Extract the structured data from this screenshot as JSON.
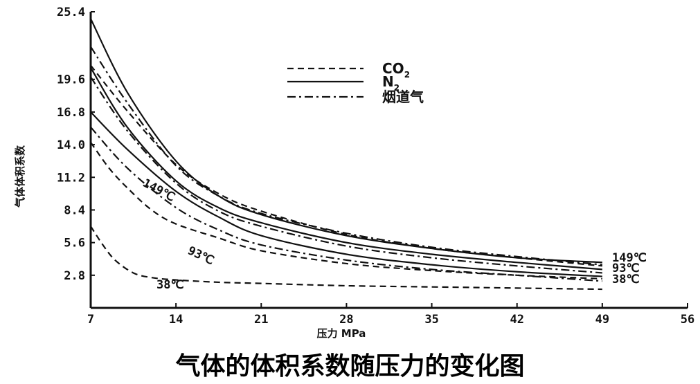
{
  "caption": "气体的体积系数随压力的变化图",
  "chart_data": {
    "type": "line",
    "xlabel": "压力 MPa",
    "ylabel": "气体体积系数",
    "xlim": [
      7,
      56
    ],
    "ylim": [
      0,
      25.4
    ],
    "xticks": [
      "7",
      "14",
      "21",
      "28",
      "35",
      "42",
      "49",
      "56"
    ],
    "yticks": [
      "25.4",
      "19.6",
      "16.8",
      "14.0",
      "11.2",
      "8.4",
      "5.6",
      "2.8"
    ],
    "grid": false,
    "legend": {
      "placement": "top-center",
      "entries": [
        {
          "label": "CO",
          "sub": "2",
          "style": "dashed"
        },
        {
          "label": "N",
          "sub": "2",
          "style": "solid"
        },
        {
          "label": "烟道气",
          "style": "dashdot"
        }
      ]
    },
    "annotations": {
      "left": [
        "149℃",
        "93℃",
        "38℃"
      ],
      "right": [
        "149℃",
        "93℃",
        "38℃"
      ]
    },
    "series": [
      {
        "gas": "N2",
        "temp": "149℃",
        "style": "solid",
        "x": [
          7,
          10,
          14,
          17.5,
          21,
          28,
          35,
          42,
          49
        ],
        "y": [
          24.8,
          18.5,
          12.6,
          9.6,
          8.0,
          6.2,
          5.1,
          4.3,
          3.9
        ]
      },
      {
        "gas": "N2",
        "temp": "93℃",
        "style": "solid",
        "x": [
          7,
          10,
          14,
          17.5,
          21,
          28,
          35,
          42,
          49
        ],
        "y": [
          20.6,
          15.5,
          10.9,
          8.6,
          7.3,
          5.6,
          4.6,
          3.9,
          3.3
        ]
      },
      {
        "gas": "N2",
        "temp": "38℃",
        "style": "solid",
        "x": [
          7,
          10,
          14,
          17.5,
          21,
          28,
          35,
          42,
          49
        ],
        "y": [
          16.8,
          13.6,
          10.0,
          7.8,
          6.2,
          4.6,
          3.7,
          3.1,
          2.7
        ]
      },
      {
        "gas": "烟道气",
        "temp": "149℃",
        "style": "dashdot",
        "x": [
          7,
          10,
          14,
          17.5,
          21,
          28,
          35,
          42,
          49
        ],
        "y": [
          22.4,
          17.6,
          12.2,
          9.6,
          8.1,
          6.4,
          5.2,
          4.4,
          3.7
        ]
      },
      {
        "gas": "烟道气",
        "temp": "93℃",
        "style": "dashdot",
        "x": [
          7,
          10,
          14,
          17.5,
          21,
          28,
          35,
          42,
          49
        ],
        "y": [
          19.8,
          15.2,
          10.7,
          8.3,
          7.0,
          5.3,
          4.3,
          3.6,
          3.0
        ]
      },
      {
        "gas": "烟道气",
        "temp": "38℃",
        "style": "dashdot",
        "x": [
          7,
          10,
          14,
          17.5,
          21,
          28,
          35,
          42,
          49
        ],
        "y": [
          15.5,
          12.0,
          8.6,
          6.7,
          5.4,
          4.1,
          3.3,
          2.8,
          2.3
        ]
      },
      {
        "gas": "CO2",
        "temp": "149℃",
        "style": "dashed",
        "x": [
          7,
          10,
          14,
          17.5,
          21,
          28,
          35,
          42,
          49
        ],
        "y": [
          20.8,
          16.9,
          12.3,
          9.8,
          8.3,
          6.3,
          5.1,
          4.3,
          3.6
        ]
      },
      {
        "gas": "CO2",
        "temp": "93℃",
        "style": "dashed",
        "x": [
          7,
          8.5,
          10,
          12,
          14,
          17.5,
          21,
          28,
          35,
          42,
          49
        ],
        "y": [
          14.2,
          12.0,
          10.3,
          8.4,
          7.2,
          6.0,
          4.9,
          3.8,
          3.2,
          2.8,
          2.5
        ]
      },
      {
        "gas": "CO2",
        "temp": "38℃",
        "style": "dashed",
        "x": [
          7,
          8,
          9,
          10.5,
          12,
          14,
          17.5,
          21,
          28,
          35,
          42,
          49
        ],
        "y": [
          7.0,
          5.4,
          4.1,
          3.0,
          2.6,
          2.4,
          2.2,
          2.1,
          1.9,
          1.8,
          1.7,
          1.6
        ]
      }
    ]
  }
}
